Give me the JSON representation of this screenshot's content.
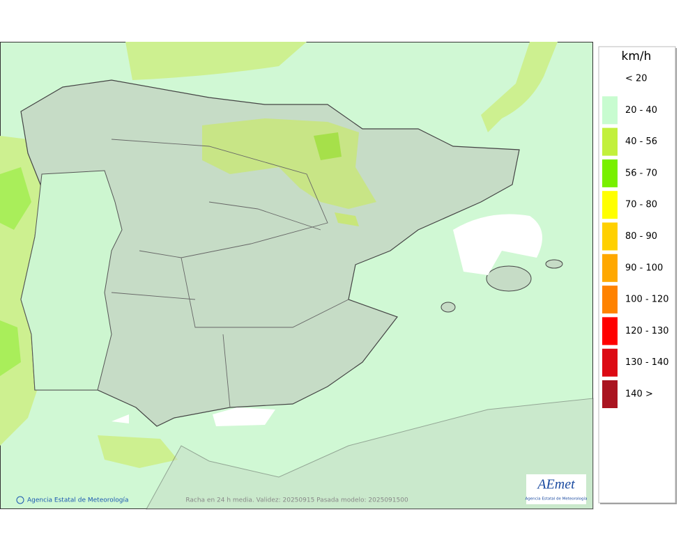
{
  "legend": {
    "title": "km/h",
    "items": [
      {
        "label": "< 20"
      },
      {
        "label": "20 - 40",
        "color": "#c8fcd0"
      },
      {
        "label": "40 - 56",
        "color": "#c2f03c"
      },
      {
        "label": "56 - 70",
        "color": "#78f000"
      },
      {
        "label": "70 - 80",
        "color": "#ffff00"
      },
      {
        "label": "80 - 90",
        "color": "#ffd000"
      },
      {
        "label": "90 - 100",
        "color": "#ffa800"
      },
      {
        "label": "100 - 120",
        "color": "#ff8200"
      },
      {
        "label": "120 - 130",
        "color": "#ff0000"
      },
      {
        "label": "130 - 140",
        "color": "#dc0a14"
      },
      {
        "label": "140 >",
        "color": "#aa1420"
      }
    ]
  },
  "credit": "Agencia Estatal de Meteorología",
  "caption": "Racha en 24 h media. Validez: 20250915 Pasada modelo: 2025091500",
  "logo": {
    "name": "AEmet",
    "subtitle": "Agencia Estatal de Meteorología"
  }
}
